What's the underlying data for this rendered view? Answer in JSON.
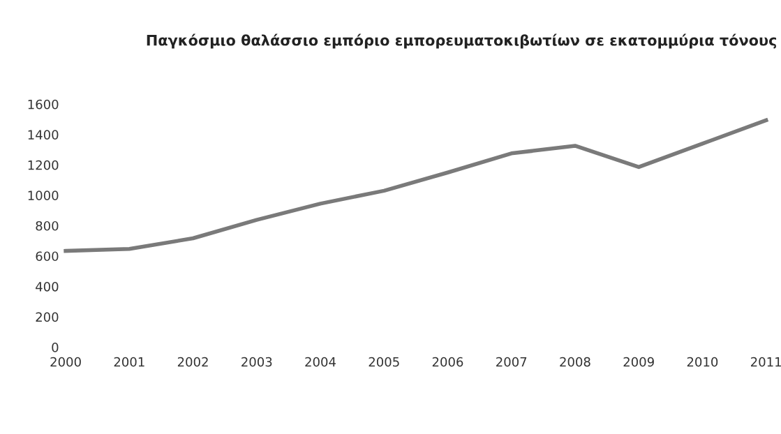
{
  "chart_data": {
    "type": "line",
    "title": "Παγκόσμιο θαλάσσιο εμπόριο εμπορευματοκιβωτίων σε εκατομμύρια τόνους",
    "categories": [
      "2000",
      "2001",
      "2002",
      "2003",
      "2004",
      "2005",
      "2006",
      "2007",
      "2008",
      "2009",
      "2010",
      "2011"
    ],
    "series": [
      {
        "color": "#7a7a7a",
        "values": [
          634,
          647,
          717,
          838,
          945,
          1030,
          1150,
          1276,
          1326,
          1186,
          1340,
          1494
        ]
      }
    ],
    "ylim": [
      0,
      1600
    ],
    "yticks": [
      0,
      200,
      400,
      600,
      800,
      1000,
      1200,
      1400,
      1600
    ],
    "grid": false,
    "legend": false,
    "marker": "none",
    "line_style": "solid"
  }
}
